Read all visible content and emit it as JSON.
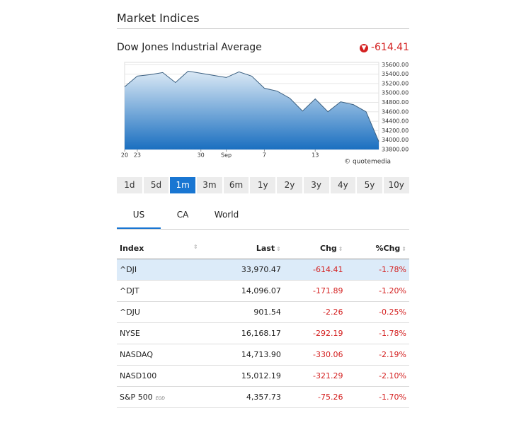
{
  "header": {
    "title": "Market Indices"
  },
  "chart_data": {
    "type": "area",
    "title": "Dow Jones Industrial Average",
    "change": -614.41,
    "categories": [
      "20",
      "23",
      null,
      null,
      null,
      null,
      "30",
      null,
      "Sep",
      null,
      null,
      "7",
      null,
      null,
      null,
      "13",
      null,
      null,
      null,
      null,
      null
    ],
    "values": [
      35131,
      35358,
      35388,
      35434,
      35222,
      35464,
      35418,
      35373,
      35328,
      35449,
      35358,
      35101,
      35040,
      34889,
      34617,
      34874,
      34602,
      34813,
      34753,
      34602,
      33970.47
    ],
    "color": "#1a6fc0",
    "ylim": [
      33800,
      35650
    ],
    "yticks": [
      {
        "value": 33800,
        "label": "33800.00"
      },
      {
        "value": 34000,
        "label": "34000.00"
      },
      {
        "value": 34200,
        "label": "34200.00"
      },
      {
        "value": 34400,
        "label": "34400.00"
      },
      {
        "value": 34600,
        "label": "34600.00"
      },
      {
        "value": 34800,
        "label": "34800.00"
      },
      {
        "value": 35000,
        "label": "35000.00"
      },
      {
        "value": 35200,
        "label": "35200.00"
      },
      {
        "value": 35400,
        "label": "35400.00"
      },
      {
        "value": 35600,
        "label": "35600.00"
      }
    ],
    "grid": true,
    "credit": "© quotemedia"
  },
  "periods": {
    "items": [
      "1d",
      "5d",
      "1m",
      "3m",
      "6m",
      "1y",
      "2y",
      "3y",
      "4y",
      "5y",
      "10y"
    ],
    "active": 2
  },
  "tabs": {
    "items": [
      "US",
      "CA",
      "World"
    ],
    "active": 0
  },
  "table": {
    "columns": [
      "Index",
      "Last",
      "Chg",
      "%Chg"
    ],
    "rows": [
      {
        "cells": [
          "^DJI",
          "33,970.47",
          "-614.41",
          "-1.78%"
        ]
      },
      {
        "cells": [
          "^DJT",
          "14,096.07",
          "-171.89",
          "-1.20%"
        ]
      },
      {
        "cells": [
          "^DJU",
          "901.54",
          "-2.26",
          "-0.25%"
        ]
      },
      {
        "cells": [
          "NYSE",
          "16,168.17",
          "-292.19",
          "-1.78%"
        ]
      },
      {
        "cells": [
          "NASDAQ",
          "14,713.90",
          "-330.06",
          "-2.19%"
        ]
      },
      {
        "cells": [
          "NASD100",
          "15,012.19",
          "-321.29",
          "-2.10%"
        ]
      },
      {
        "cells": [
          "S&P 500",
          "4,357.73",
          "-75.26",
          "-1.70%"
        ],
        "tag": "EOD"
      }
    ],
    "highlight": 0
  }
}
